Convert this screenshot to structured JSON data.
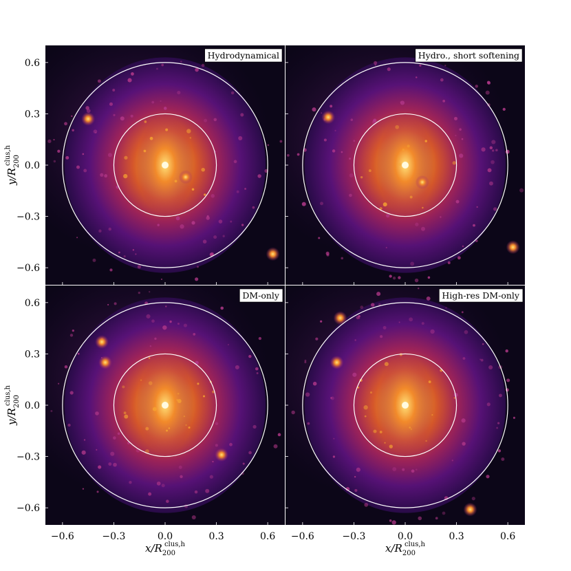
{
  "chart_data": [
    {
      "type": "heatmap",
      "panel_label": "Hydrodynamical",
      "xlim": [
        -0.7,
        0.7
      ],
      "ylim": [
        -0.7,
        0.7
      ],
      "circle_radii": [
        0.3,
        0.6
      ],
      "bright_spots": [
        [
          0.0,
          0.0
        ],
        [
          -0.45,
          0.27
        ],
        [
          0.63,
          -0.52
        ],
        [
          0.12,
          -0.07
        ]
      ]
    },
    {
      "type": "heatmap",
      "panel_label": "Hydro., short softening",
      "xlim": [
        -0.7,
        0.7
      ],
      "ylim": [
        -0.7,
        0.7
      ],
      "circle_radii": [
        0.3,
        0.6
      ],
      "bright_spots": [
        [
          0.0,
          0.0
        ],
        [
          -0.45,
          0.28
        ],
        [
          0.63,
          -0.48
        ],
        [
          0.1,
          -0.1
        ]
      ]
    },
    {
      "type": "heatmap",
      "panel_label": "DM-only",
      "xlim": [
        -0.7,
        0.7
      ],
      "ylim": [
        -0.7,
        0.7
      ],
      "circle_radii": [
        0.3,
        0.6
      ],
      "bright_spots": [
        [
          0.0,
          0.0
        ],
        [
          -0.35,
          0.25
        ],
        [
          -0.37,
          0.37
        ],
        [
          0.33,
          -0.29
        ]
      ]
    },
    {
      "type": "heatmap",
      "panel_label": "High-res DM-only",
      "xlim": [
        -0.7,
        0.7
      ],
      "ylim": [
        -0.7,
        0.7
      ],
      "circle_radii": [
        0.3,
        0.6
      ],
      "bright_spots": [
        [
          0.0,
          0.0
        ],
        [
          -0.4,
          0.25
        ],
        [
          -0.38,
          0.51
        ],
        [
          0.38,
          -0.61
        ]
      ]
    }
  ],
  "axes": {
    "x_ticks": [
      "−0.6",
      "−0.3",
      "0.0",
      "0.3",
      "0.6"
    ],
    "y_ticks": [
      "0.6",
      "0.3",
      "0.0",
      "−0.3",
      "−0.6"
    ],
    "xlabel_var": "x/R",
    "ylabel_var": "y/R",
    "sub": "200",
    "sup": "clus,h"
  },
  "colors": {
    "circle": "#ffffff",
    "colormap": "inferno"
  }
}
